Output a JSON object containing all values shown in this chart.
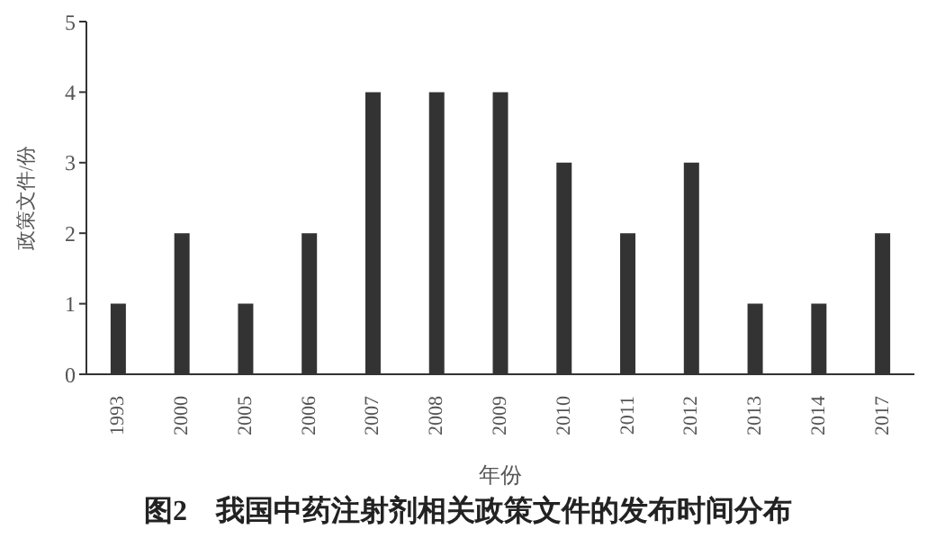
{
  "chart_data": {
    "type": "bar",
    "title": "图2　我国中药注射剂相关政策文件的发布时间分布",
    "xlabel": "年份",
    "ylabel": "政策文件/份",
    "categories": [
      "1993",
      "2000",
      "2005",
      "2006",
      "2007",
      "2008",
      "2009",
      "2010",
      "2011",
      "2012",
      "2013",
      "2014",
      "2017"
    ],
    "values": [
      1,
      2,
      1,
      2,
      4,
      4,
      4,
      3,
      2,
      3,
      1,
      1,
      2
    ],
    "color": "#333333",
    "ylim": [
      0,
      5
    ],
    "yticks": [
      0,
      1,
      2,
      3,
      4,
      5
    ],
    "grid": false
  }
}
